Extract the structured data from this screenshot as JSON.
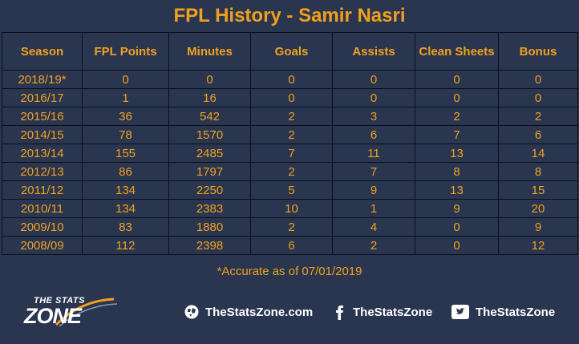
{
  "title": "FPL History - Samir Nasri",
  "headers": [
    "Season",
    "FPL Points",
    "Minutes",
    "Goals",
    "Assists",
    "Clean Sheets",
    "Bonus"
  ],
  "rows": [
    [
      "2018/19*",
      "0",
      "0",
      "0",
      "0",
      "0",
      "0"
    ],
    [
      "2016/17",
      "1",
      "16",
      "0",
      "0",
      "0",
      "0"
    ],
    [
      "2015/16",
      "36",
      "542",
      "2",
      "3",
      "2",
      "2"
    ],
    [
      "2014/15",
      "78",
      "1570",
      "2",
      "6",
      "7",
      "6"
    ],
    [
      "2013/14",
      "155",
      "2485",
      "7",
      "11",
      "13",
      "14"
    ],
    [
      "2012/13",
      "86",
      "1797",
      "2",
      "7",
      "8",
      "8"
    ],
    [
      "2011/12",
      "134",
      "2250",
      "5",
      "9",
      "13",
      "15"
    ],
    [
      "2010/11",
      "134",
      "2383",
      "10",
      "1",
      "9",
      "20"
    ],
    [
      "2009/10",
      "83",
      "1880",
      "2",
      "4",
      "0",
      "9"
    ],
    [
      "2008/09",
      "112",
      "2398",
      "6",
      "2",
      "0",
      "12"
    ]
  ],
  "note": "*Accurate as of 07/01/2019",
  "logo": {
    "line1": "THE STATS",
    "line2": "ZONE"
  },
  "social": {
    "website": {
      "icon": "globe-icon",
      "label": "TheStatsZone.com"
    },
    "facebook": {
      "icon": "facebook-icon",
      "label": "TheStatsZone"
    },
    "twitter": {
      "icon": "twitter-icon",
      "label": "TheStatsZone"
    }
  },
  "colors": {
    "background": "#2a3650",
    "accent": "#f0a01e",
    "grid": "#0b0f18",
    "text_light": "#ffffff"
  }
}
